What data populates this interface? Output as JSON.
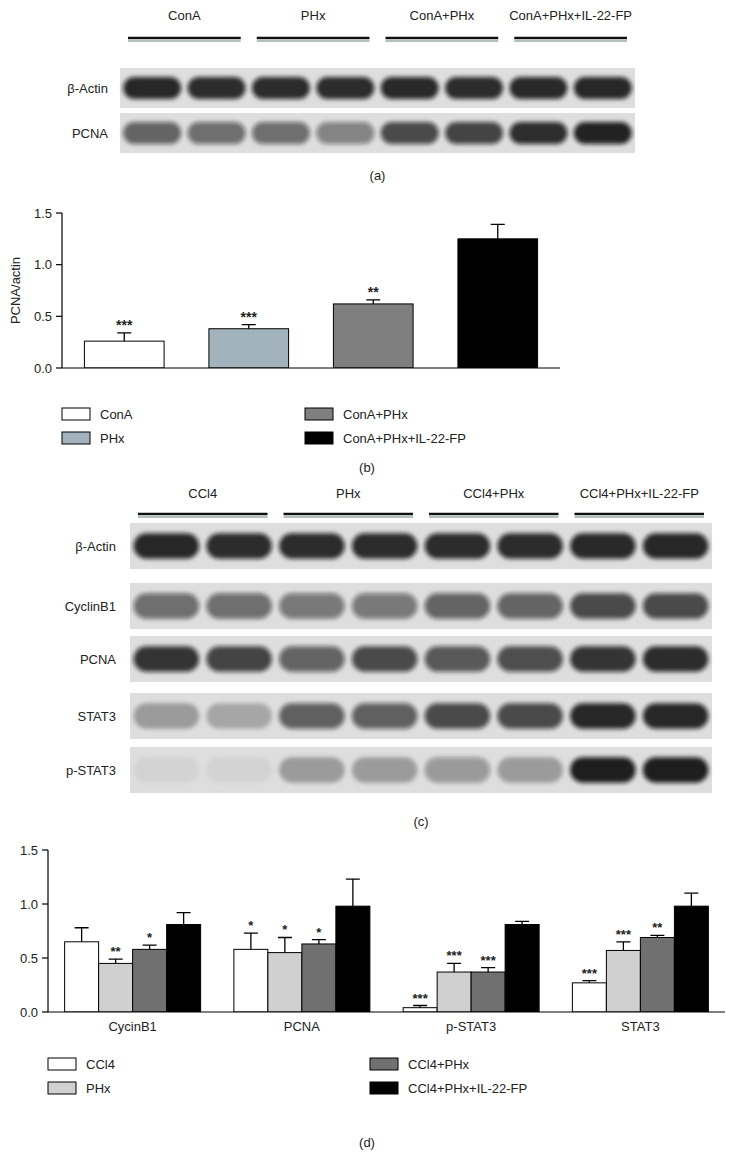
{
  "blot_a": {
    "title": "(a)",
    "groups": [
      "ConA",
      "PHx",
      "ConA+PHx",
      "ConA+PHx+IL-22-FP"
    ],
    "rows": [
      {
        "label": "β-Actin",
        "intensity": [
          0.88,
          0.86,
          0.86,
          0.86,
          0.87,
          0.86,
          0.87,
          0.88
        ]
      },
      {
        "label": "PCNA",
        "intensity": [
          0.6,
          0.55,
          0.55,
          0.45,
          0.72,
          0.75,
          0.85,
          0.9
        ]
      }
    ]
  },
  "blot_c": {
    "title": "(c)",
    "groups": [
      "CCl4",
      "PHx",
      "CCl4+PHx",
      "CCl4+PHx+IL-22-FP"
    ],
    "rows": [
      {
        "label": "β-Actin",
        "intensity": [
          0.88,
          0.86,
          0.86,
          0.86,
          0.86,
          0.86,
          0.87,
          0.88
        ]
      },
      {
        "label": "CyclinB1",
        "intensity": [
          0.55,
          0.55,
          0.5,
          0.5,
          0.6,
          0.6,
          0.72,
          0.72
        ]
      },
      {
        "label": "PCNA",
        "intensity": [
          0.82,
          0.75,
          0.6,
          0.72,
          0.65,
          0.7,
          0.82,
          0.86
        ]
      },
      {
        "label": "STAT3",
        "intensity": [
          0.3,
          0.25,
          0.62,
          0.62,
          0.72,
          0.72,
          0.88,
          0.88
        ]
      },
      {
        "label": "p-STAT3",
        "intensity": [
          0.05,
          0.05,
          0.3,
          0.3,
          0.35,
          0.3,
          0.92,
          0.92
        ]
      }
    ]
  },
  "chart_data": [
    {
      "type": "bar",
      "title": "(b)",
      "y_label": "PCNA/actin",
      "categories": [
        "ConA",
        "PHx",
        "ConA+PHx",
        "ConA+PHx+IL-22-FP"
      ],
      "values": [
        0.26,
        0.38,
        0.62,
        1.25
      ],
      "errors": [
        0.08,
        0.04,
        0.04,
        0.14
      ],
      "significance": [
        "***",
        "***",
        "**",
        null
      ],
      "colors": [
        "#ffffff",
        "#a3b3bd",
        "#7f7f7f",
        "#000000"
      ],
      "ylim": [
        0,
        1.5
      ],
      "yticks": [
        {
          "value": 0,
          "label": "0.0"
        },
        0.5,
        {
          "value": 1,
          "label": "1.0"
        },
        1.5
      ],
      "tick_labels": "y",
      "legend": "bottom"
    },
    {
      "type": "bar",
      "title": "(d)",
      "categories": [
        "CycinB1",
        "PCNA",
        "p-STAT3",
        "STAT3"
      ],
      "series": [
        {
          "name": "CCl4",
          "color": "#ffffff",
          "values": [
            0.65,
            0.58,
            0.04,
            0.27
          ],
          "errors": [
            0.13,
            0.15,
            0.02,
            0.02
          ],
          "significance": [
            null,
            "*",
            "***",
            "***"
          ]
        },
        {
          "name": "PHx",
          "color": "#d0d0d0",
          "values": [
            0.45,
            0.55,
            0.37,
            0.57
          ],
          "errors": [
            0.04,
            0.14,
            0.08,
            0.08
          ],
          "significance": [
            "**",
            "*",
            "***",
            "***"
          ]
        },
        {
          "name": "CCl4+PHx",
          "color": "#707070",
          "values": [
            0.58,
            0.63,
            0.37,
            0.69
          ],
          "errors": [
            0.04,
            0.04,
            0.04,
            0.02
          ],
          "significance": [
            "*",
            "*",
            "***",
            "**"
          ]
        },
        {
          "name": "CCl4+PHx+IL-22-FP",
          "color": "#000000",
          "values": [
            0.81,
            0.98,
            0.81,
            0.98
          ],
          "errors": [
            0.11,
            0.25,
            0.03,
            0.12
          ],
          "significance": [
            null,
            null,
            null,
            null
          ]
        }
      ],
      "ylim": [
        0,
        1.5
      ],
      "yticks": [
        {
          "value": 0,
          "label": "0.0"
        },
        0.5,
        {
          "value": 1,
          "label": "1.0"
        },
        1.5
      ],
      "legend": "bottom"
    }
  ]
}
